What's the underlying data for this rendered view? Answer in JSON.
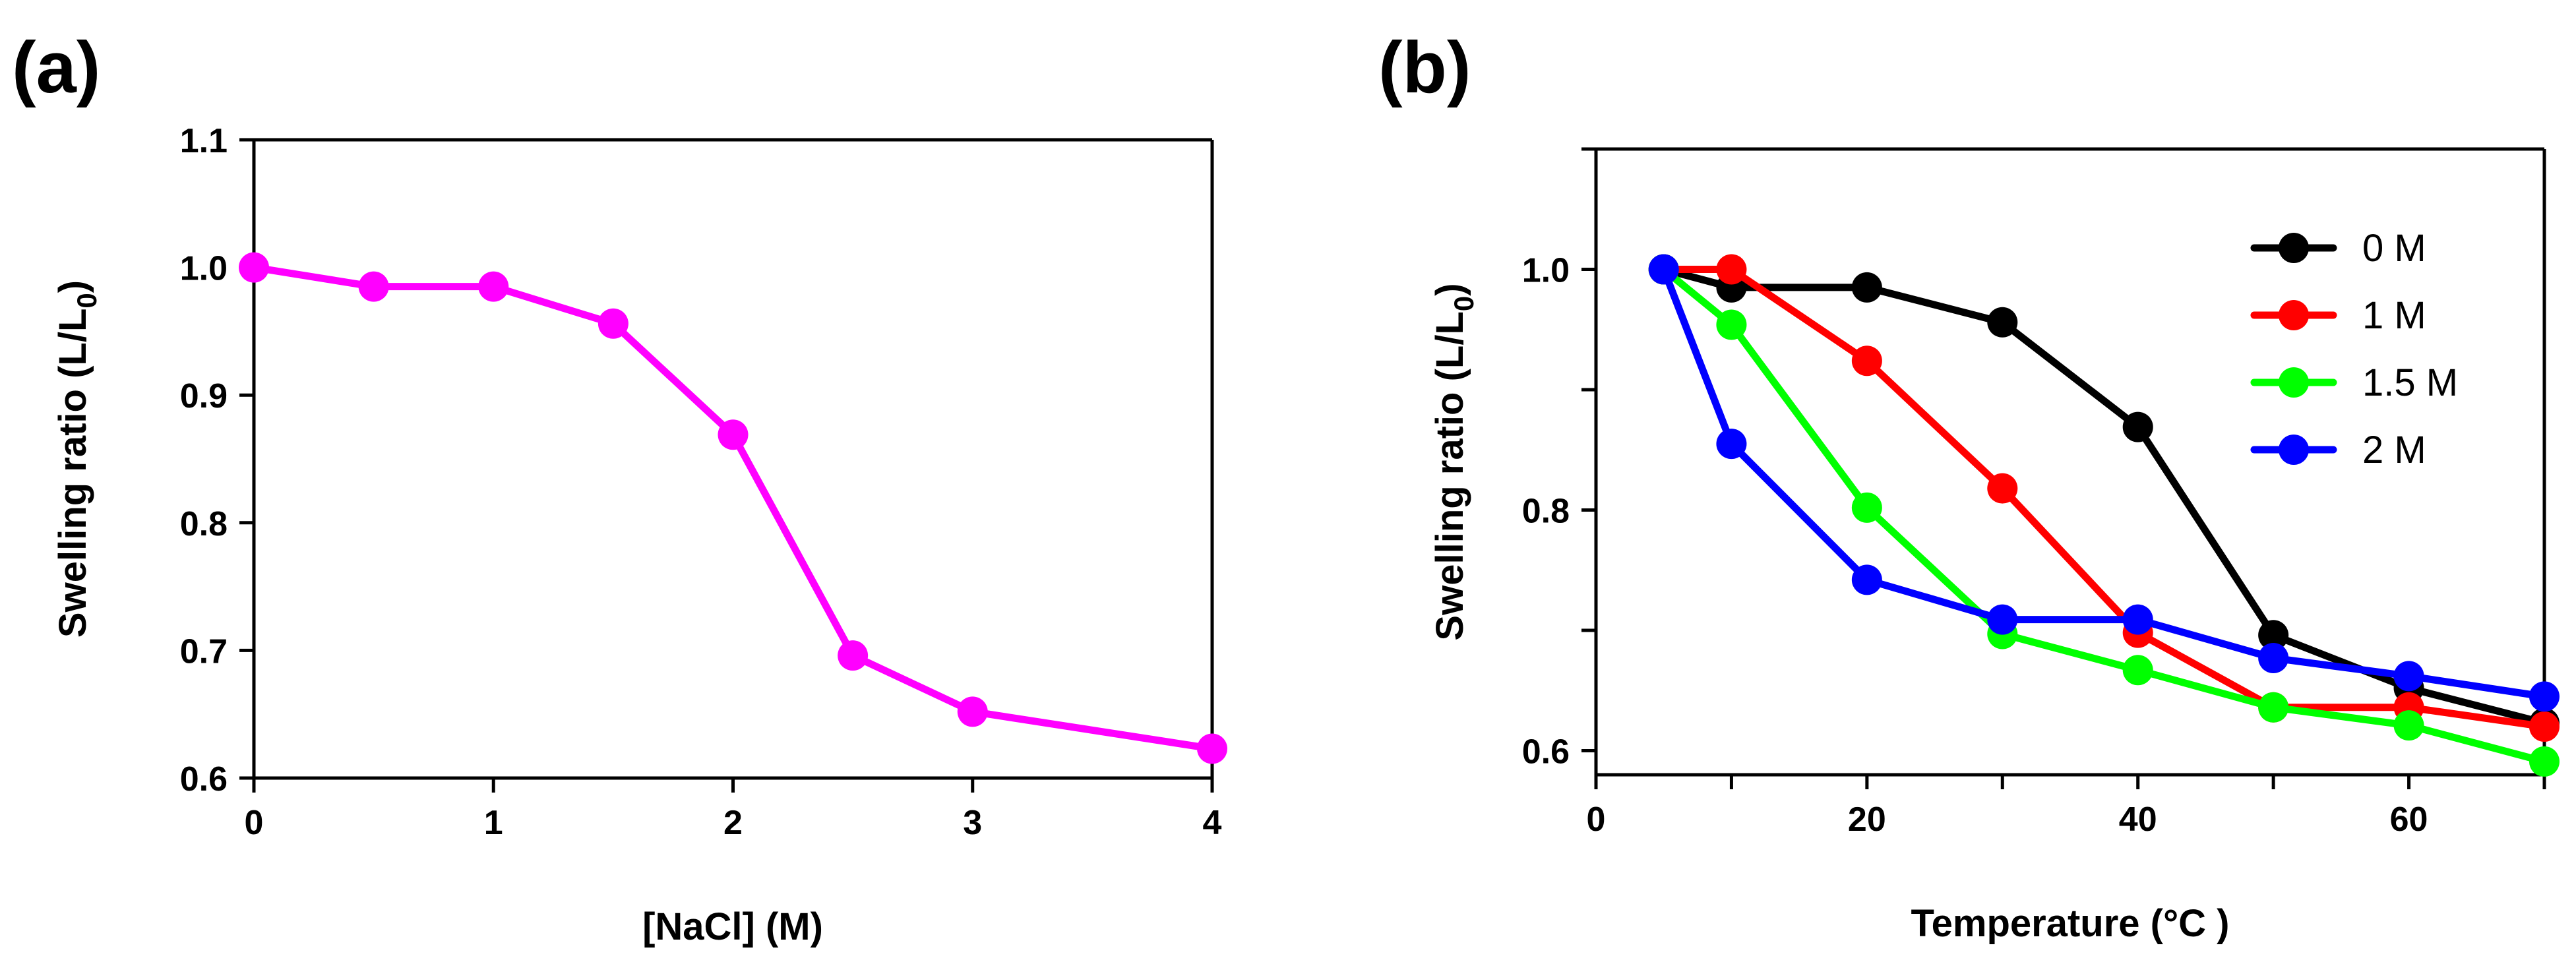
{
  "panel_labels": [
    "(a)",
    "(b)"
  ],
  "chart_data": [
    {
      "type": "line",
      "panel": "(a)",
      "title": "",
      "xlabel": "[NaCl] (M)",
      "ylabel_main": "Swelling ratio (L/L",
      "ylabel_sub": "0",
      "ylabel_end": ")",
      "xlim": [
        0,
        4
      ],
      "ylim": [
        0.6,
        1.1
      ],
      "xticks": [
        0,
        1,
        2,
        3,
        4
      ],
      "xtick_labels": [
        "0",
        "1",
        "2",
        "3",
        "4"
      ],
      "yticks": [
        0.6,
        0.7,
        0.8,
        0.9,
        1.0,
        1.1
      ],
      "ytick_labels": [
        "0.6",
        "0.7",
        "0.8",
        "0.9",
        "1.0",
        "1.1"
      ],
      "grid": false,
      "series": [
        {
          "name": "",
          "color": "#ff00ff",
          "x": [
            0,
            0.5,
            1,
            1.5,
            2,
            2.5,
            3,
            4
          ],
          "y": [
            1.0,
            0.985,
            0.985,
            0.956,
            0.869,
            0.696,
            0.652,
            0.623
          ]
        }
      ]
    },
    {
      "type": "line",
      "panel": "(b)",
      "title": "",
      "xlabel": "Temperature (°C )",
      "ylabel_main": "Swelling ratio (L/L",
      "ylabel_sub": "0",
      "ylabel_end": ")",
      "xlim": [
        0,
        70
      ],
      "ylim": [
        0.58,
        1.1
      ],
      "xticks": [
        0,
        10,
        20,
        30,
        40,
        50,
        60,
        70
      ],
      "xtick_labels": [
        "0",
        "",
        "20",
        "",
        "40",
        "",
        "60",
        ""
      ],
      "yticks": [
        0.6,
        0.7,
        0.8,
        0.9,
        1.0,
        1.1
      ],
      "ytick_labels": [
        "0.6",
        "",
        "0.8",
        "",
        "1.0",
        ""
      ],
      "grid": false,
      "legend_position": "top-right",
      "series": [
        {
          "name": "0 M",
          "color": "#000000",
          "x": [
            5,
            10,
            20,
            30,
            40,
            50,
            60,
            70
          ],
          "y": [
            1.0,
            0.985,
            0.985,
            0.956,
            0.869,
            0.696,
            0.652,
            0.623
          ]
        },
        {
          "name": "1 M",
          "color": "#ff0000",
          "x": [
            5,
            10,
            20,
            30,
            40,
            50,
            60,
            70
          ],
          "y": [
            1.0,
            1.0,
            0.924,
            0.818,
            0.698,
            0.636,
            0.636,
            0.62
          ]
        },
        {
          "name": "1.5 M",
          "color": "#00ff00",
          "x": [
            5,
            10,
            20,
            30,
            40,
            50,
            60,
            70
          ],
          "y": [
            1.0,
            0.954,
            0.802,
            0.697,
            0.667,
            0.636,
            0.621,
            0.591
          ]
        },
        {
          "name": "2 M",
          "color": "#0000ff",
          "x": [
            5,
            10,
            20,
            30,
            40,
            50,
            60,
            70
          ],
          "y": [
            1.0,
            0.855,
            0.742,
            0.709,
            0.709,
            0.677,
            0.662,
            0.645
          ]
        }
      ]
    }
  ]
}
